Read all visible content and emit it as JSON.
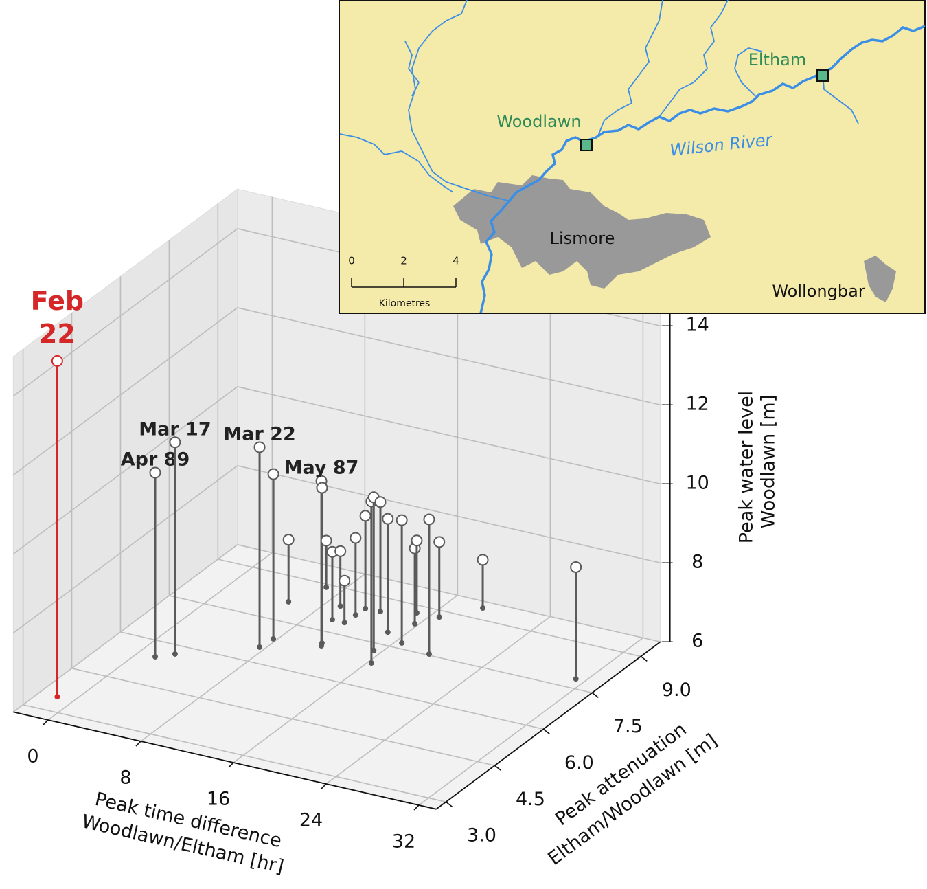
{
  "chart_data": {
    "type": "stem3d",
    "xlabel": [
      "Peak time difference",
      "Woodlawn/Eltham [hr]"
    ],
    "ylabel": [
      "Peak attenuation",
      "Eltham/Woodlawn [m]"
    ],
    "zlabel": [
      "Peak water level",
      "Woodlawn [m]"
    ],
    "xlim": [
      -3,
      33.5
    ],
    "ylim": [
      2.7,
      9.6
    ],
    "zlim": [
      6,
      15
    ],
    "xticks": [
      0,
      8,
      16,
      24,
      32
    ],
    "yticks": [
      {
        "value": 3,
        "label": "3.0"
      },
      4.5,
      {
        "value": 6,
        "label": "6.0"
      },
      7.5,
      {
        "value": 9,
        "label": "9.0"
      }
    ],
    "zticks": [
      6,
      8,
      10,
      12,
      14
    ],
    "grid": true,
    "series": [
      {
        "color": "#d62728",
        "label_color": "#d62728",
        "x": [
          -1.45
        ],
        "y": [
          3.5
        ],
        "z": [
          14.5
        ],
        "labels": [
          [
            "Feb",
            "22"
          ]
        ]
      },
      {
        "color": "#5a5a5a",
        "label_color": "#222222",
        "x": [
          1.48,
          2.55,
          7.52,
          7.7,
          5.42,
          11.48,
          11.28,
          6.63,
          9.9,
          9.22,
          10.95,
          11.01,
          11.1,
          16.3,
          15.35,
          12.34,
          14.66,
          16.54,
          15.7,
          14.86,
          19.32,
          16.72,
          18.79,
          31.2
        ],
        "y": [
          5.47,
          5.7,
          6.53,
          6.89,
          8.17,
          7.02,
          7.11,
          8.9,
          7.92,
          8.41,
          7.92,
          8.24,
          8.51,
          6.84,
          7.25,
          8.53,
          7.93,
          7.69,
          8.39,
          8.75,
          7.54,
          8.78,
          9.38,
          7.82
        ],
        "z": [
          10.66,
          11.36,
          11.06,
          10.17,
          7.57,
          10.17,
          9.93,
          7.18,
          7.72,
          7.39,
          7.06,
          7.95,
          8.35,
          10.09,
          9.88,
          8.77,
          8.87,
          9.11,
          7.91,
          7.83,
          9.41,
          7.9,
          7.22,
          8.83
        ],
        "labels": [
          [
            "Apr 89"
          ],
          [
            "Mar 17"
          ],
          [
            "Mar 22"
          ],
          null,
          null,
          [
            "May 87"
          ],
          null,
          null,
          null,
          null,
          null,
          null,
          null,
          null,
          null,
          null,
          null,
          null,
          null,
          null,
          null,
          null,
          null,
          null
        ]
      }
    ]
  },
  "inset_map": {
    "stations": [
      "Woodlawn",
      "Eltham"
    ],
    "river": "Wilson River",
    "towns": [
      "Lismore",
      "Wollongbar"
    ],
    "scale_ticks": [
      0,
      2,
      4
    ],
    "scale_label": "Kilometres"
  }
}
